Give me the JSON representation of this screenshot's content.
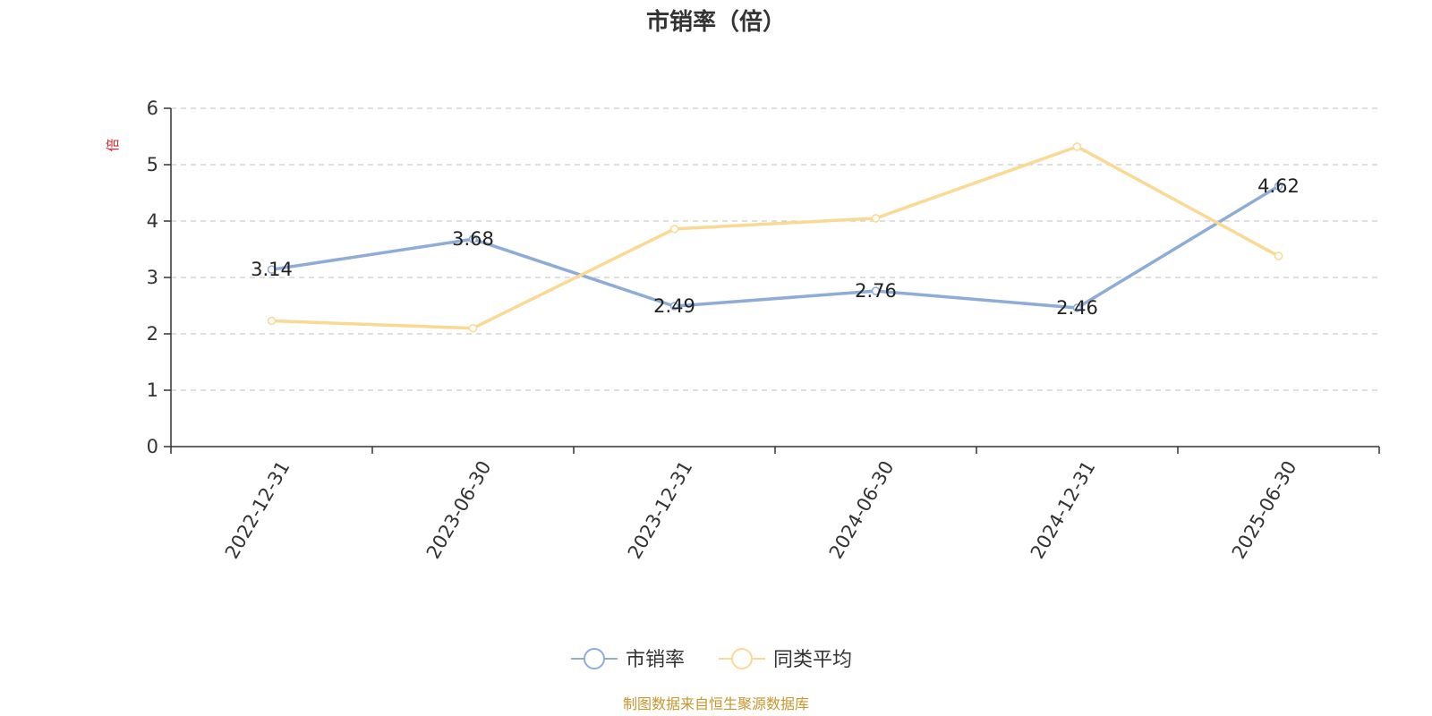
{
  "chart_data": {
    "type": "line",
    "title": "市销率（倍）",
    "ylabel": "倍",
    "categories": [
      "2022-12-31",
      "2023-06-30",
      "2023-12-31",
      "2024-06-30",
      "2024-12-31",
      "2025-06-30"
    ],
    "ylim": [
      0,
      6
    ],
    "yticks": [
      "0",
      "1",
      "2",
      "3",
      "4",
      "5",
      "6"
    ],
    "grid": true,
    "legend_position": "bottom-center",
    "series": [
      {
        "name": "市销率",
        "color": "#8eacd6",
        "values": [
          3.14,
          3.68,
          2.49,
          2.76,
          2.46,
          4.62
        ],
        "labels": [
          "3.14",
          "3.68",
          "2.49",
          "2.76",
          "2.46",
          "4.62"
        ]
      },
      {
        "name": "同类平均",
        "color": "#fad994",
        "values": [
          2.23,
          2.1,
          3.86,
          4.05,
          5.32,
          3.38
        ],
        "labels": []
      }
    ]
  },
  "footer": {
    "source": "制图数据来自恒生聚源数据库"
  },
  "colors": {
    "axis": "#333333",
    "grid": "#cccccc",
    "unit": "#e8202a",
    "source": "#c8962e"
  }
}
